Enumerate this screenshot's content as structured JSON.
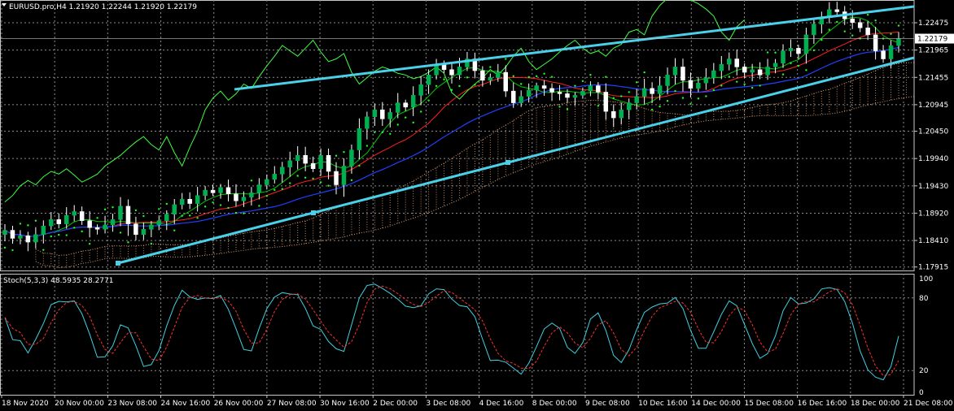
{
  "header": {
    "symbol_line": "EURUSD.pro,H4  1.21920 1.22244 1.21920 1.22179",
    "stoch_line": "Stoch(5,3,3) 48.5935 28.2771"
  },
  "colors": {
    "background": "#000000",
    "grid": "#8a8a8a",
    "bull_candle": "#00b050",
    "bear_candle": "#ffffff",
    "ma_fast": "#00c800",
    "ma_mid": "#ff2020",
    "ma_slow": "#2040ff",
    "chikou": "#40ff40",
    "psar": "#20ff20",
    "cloud": "#e0a070",
    "trendline": "#4ad0e8",
    "stoch_main": "#40d0e0",
    "stoch_signal": "#ff3030",
    "price_badge": "#c0c0c0"
  },
  "chart_data": [
    {
      "type": "candlestick",
      "symbol": "EURUSD.pro",
      "timeframe": "H4",
      "ohlc_header": {
        "open": 1.2192,
        "high": 1.22244,
        "low": 1.2192,
        "close": 1.22179
      },
      "current_price": 1.22179,
      "y_ticks": [
        1.22475,
        1.21965,
        1.21455,
        1.20945,
        1.2045,
        1.1994,
        1.1943,
        1.1892,
        1.1841,
        1.17915
      ],
      "ylim": [
        1.1785,
        1.229
      ],
      "x_ticks": [
        "18 Nov 2020",
        "20 Nov 00:00",
        "23 Nov 08:00",
        "24 Nov 16:00",
        "26 Nov 00:00",
        "27 Nov 08:00",
        "30 Nov 16:00",
        "2 Dec 00:00",
        "3 Dec 08:00",
        "4 Dec 16:00",
        "8 Dec 00:00",
        "9 Dec 08:00",
        "10 Dec 16:00",
        "14 Dec 00:00",
        "15 Dec 08:00",
        "16 Dec 16:00",
        "18 Dec 00:00",
        "21 Dec 08:00"
      ],
      "closes": [
        1.186,
        1.1845,
        1.185,
        1.1838,
        1.1852,
        1.1868,
        1.188,
        1.1872,
        1.1888,
        1.1895,
        1.1878,
        1.1865,
        1.1862,
        1.187,
        1.188,
        1.1905,
        1.1872,
        1.1852,
        1.1862,
        1.187,
        1.1878,
        1.189,
        1.1908,
        1.1918,
        1.191,
        1.1925,
        1.1935,
        1.193,
        1.194,
        1.1928,
        1.1915,
        1.1922,
        1.193,
        1.1945,
        1.1955,
        1.1965,
        1.1978,
        1.199,
        1.2,
        1.1985,
        1.1975,
        1.2,
        1.197,
        1.1945,
        1.198,
        1.201,
        1.205,
        1.2072,
        1.2085,
        1.2068,
        1.208,
        1.2098,
        1.209,
        1.2112,
        1.2132,
        1.215,
        1.217,
        1.216,
        1.215,
        1.2165,
        1.218,
        1.2158,
        1.214,
        1.2145,
        1.2155,
        1.212,
        1.2098,
        1.211,
        1.2122,
        1.213,
        1.2125,
        1.2118,
        1.2115,
        1.2108,
        1.2112,
        1.212,
        1.213,
        1.2118,
        1.2082,
        1.207,
        1.2085,
        1.2098,
        1.211,
        1.2125,
        1.2115,
        1.213,
        1.215,
        1.2165,
        1.214,
        1.2125,
        1.2135,
        1.2145,
        1.2158,
        1.217,
        1.218,
        1.2165,
        1.2155,
        1.216,
        1.215,
        1.2165,
        1.2172,
        1.2195,
        1.22,
        1.219,
        1.2225,
        1.2245,
        1.2258,
        1.2272,
        1.2268,
        1.2255,
        1.2248,
        1.2238,
        1.2225,
        1.2195,
        1.218,
        1.2205,
        1.2218
      ]
    },
    {
      "type": "line",
      "name": "Stoch(5,3,3)",
      "main": 48.5935,
      "signal": 28.2771,
      "y_ticks": [
        100,
        80,
        20,
        0
      ],
      "ylim": [
        0,
        100
      ]
    }
  ]
}
